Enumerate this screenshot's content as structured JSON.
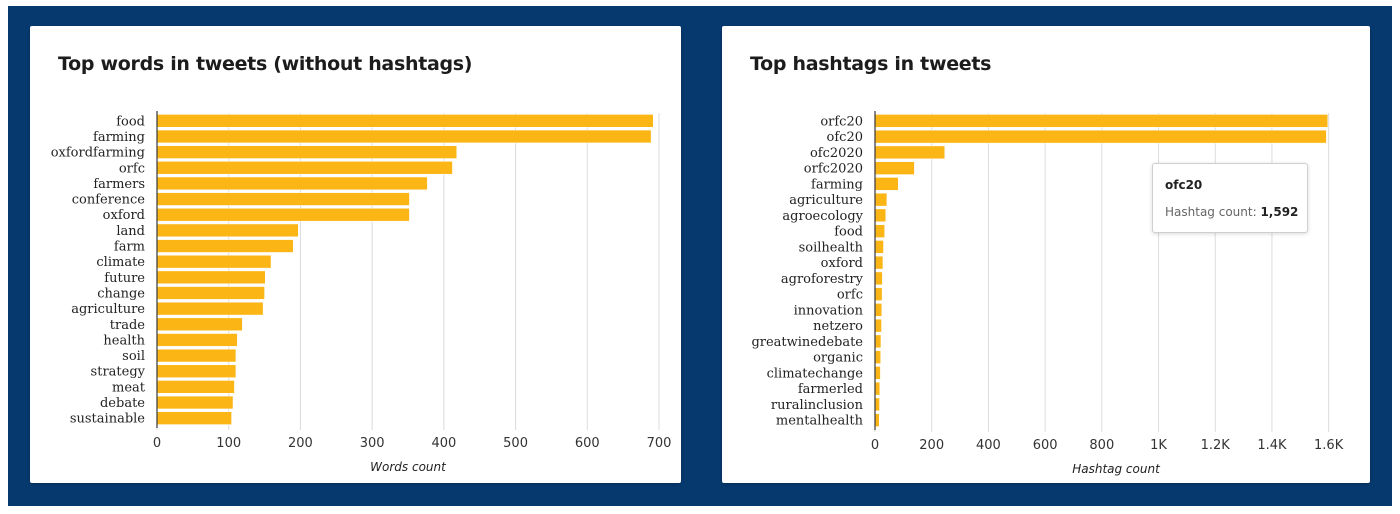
{
  "chart_data": [
    {
      "type": "bar",
      "orientation": "horizontal",
      "title": "Top words in tweets (without hashtags)",
      "xlabel": "Words count",
      "ylabel": "",
      "categories": [
        "food",
        "farming",
        "oxfordfarming",
        "orfc",
        "farmers",
        "conference",
        "oxford",
        "land",
        "farm",
        "climate",
        "future",
        "change",
        "agriculture",
        "trade",
        "health",
        "soil",
        "strategy",
        "meat",
        "debate",
        "sustainable"
      ],
      "values": [
        692,
        689,
        418,
        412,
        377,
        352,
        352,
        197,
        190,
        159,
        151,
        150,
        148,
        119,
        112,
        110,
        110,
        108,
        106,
        104
      ],
      "xlim": [
        0,
        700
      ],
      "ticks": [
        0,
        100,
        200,
        300,
        400,
        500,
        600,
        700
      ],
      "tick_labels": [
        "0",
        "100",
        "200",
        "300",
        "400",
        "500",
        "600",
        "700"
      ],
      "bar_color": "#fbb514",
      "grid": true
    },
    {
      "type": "bar",
      "orientation": "horizontal",
      "title": "Top hashtags in tweets",
      "xlabel": "Hashtag count",
      "ylabel": "",
      "categories": [
        "orfc20",
        "ofc20",
        "ofc2020",
        "orfc2020",
        "farming",
        "agriculture",
        "agroecology",
        "food",
        "soilhealth",
        "oxford",
        "agroforestry",
        "orfc",
        "innovation",
        "netzero",
        "greatwinedebate",
        "organic",
        "climatechange",
        "farmerled",
        "ruralinclusion",
        "mentalhealth"
      ],
      "values": [
        1597,
        1592,
        246,
        139,
        82,
        42,
        38,
        34,
        30,
        28,
        26,
        25,
        24,
        23,
        21,
        20,
        19,
        17,
        16,
        15
      ],
      "xlim": [
        0,
        1700
      ],
      "ticks": [
        0,
        200,
        400,
        600,
        800,
        1000,
        1200,
        1400,
        1600
      ],
      "tick_labels": [
        "0",
        "200",
        "400",
        "600",
        "800",
        "1K",
        "1.2K",
        "1.4K",
        "1.6K"
      ],
      "bar_color": "#fbb514",
      "grid": true,
      "tooltip": {
        "title": "ofc20",
        "label": "Hashtag count: ",
        "value": "1,592"
      }
    }
  ]
}
